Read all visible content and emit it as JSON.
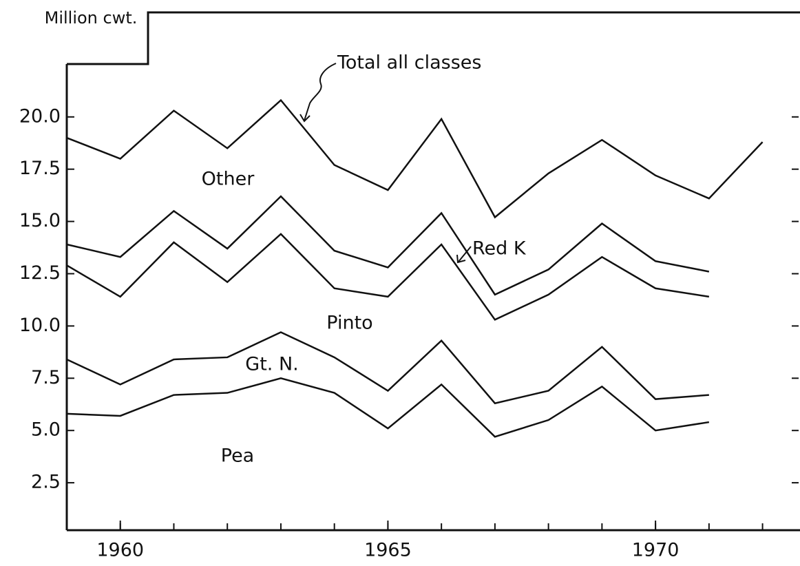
{
  "chart_data": {
    "type": "line",
    "stacked": true,
    "y_label": "Million cwt.",
    "x": [
      1959,
      1960,
      1961,
      1962,
      1963,
      1964,
      1965,
      1966,
      1967,
      1968,
      1969,
      1970,
      1971,
      1972
    ],
    "series": [
      {
        "name": "Pea",
        "color": "#111111",
        "stack": true,
        "values": [
          5.8,
          5.7,
          6.7,
          6.8,
          7.5,
          6.8,
          5.1,
          7.2,
          4.7,
          5.5,
          7.1,
          5.0,
          5.4,
          null
        ]
      },
      {
        "name": "Gt. N.",
        "color": "#111111",
        "stack": true,
        "values": [
          2.6,
          1.5,
          1.7,
          1.7,
          2.2,
          1.7,
          1.8,
          2.1,
          1.6,
          1.4,
          1.9,
          1.5,
          1.3,
          null
        ]
      },
      {
        "name": "Pinto",
        "color": "#111111",
        "stack": true,
        "values": [
          4.5,
          4.2,
          5.6,
          3.6,
          4.7,
          3.3,
          4.5,
          4.6,
          4.0,
          4.6,
          4.3,
          5.3,
          4.7,
          null
        ]
      },
      {
        "name": "Red K",
        "color": "#111111",
        "stack": true,
        "values": [
          1.0,
          1.9,
          1.5,
          1.6,
          1.8,
          1.8,
          1.4,
          1.5,
          1.2,
          1.2,
          1.6,
          1.3,
          1.2,
          null
        ]
      },
      {
        "name": "Total all classes",
        "color": "#111111",
        "stack": false,
        "values": [
          19.0,
          18.0,
          20.3,
          18.5,
          20.8,
          17.7,
          16.5,
          19.9,
          15.2,
          17.3,
          18.9,
          17.2,
          16.1,
          18.8
        ]
      }
    ],
    "region_label": "Other",
    "xlim": [
      1959,
      1972.7
    ],
    "xticks": [
      1960,
      1965,
      1970
    ],
    "ylim": [
      0,
      25
    ],
    "yticks": [
      {
        "value": 2.5,
        "label": "2.5"
      },
      {
        "value": 5,
        "label": "5.0"
      },
      {
        "value": 7.5,
        "label": "7.5"
      },
      {
        "value": 10,
        "label": "10.0"
      },
      {
        "value": 12.5,
        "label": "12.5"
      },
      {
        "value": 15,
        "label": "15.0"
      },
      {
        "value": 17.5,
        "label": "17.5"
      },
      {
        "value": 20,
        "label": "20.0"
      }
    ],
    "grid": false
  }
}
